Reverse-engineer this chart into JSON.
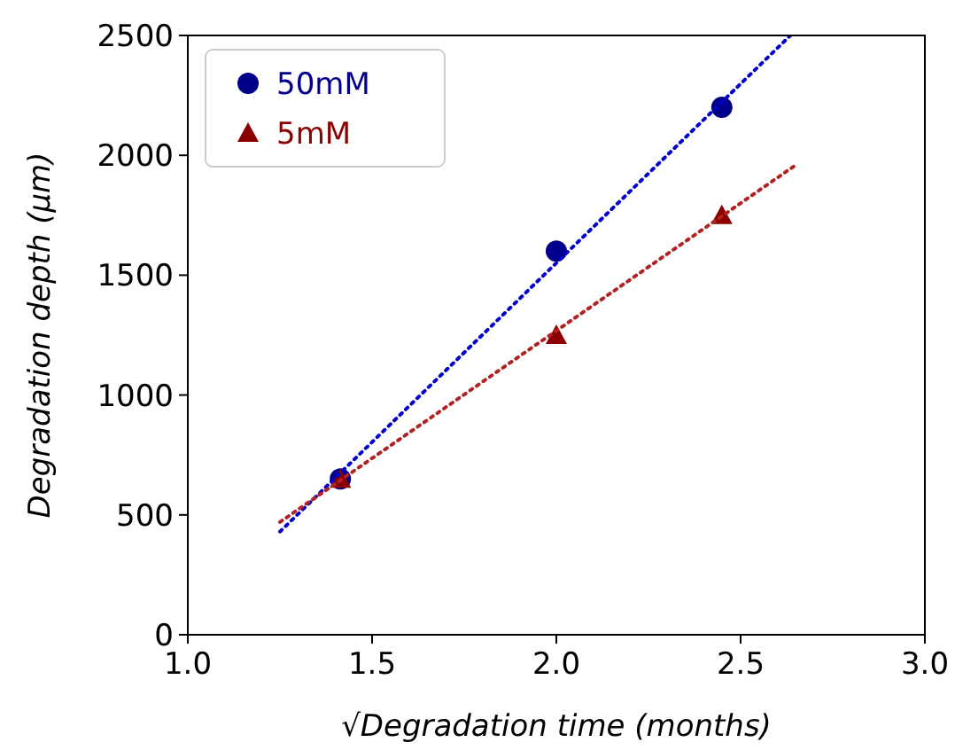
{
  "chart_data": {
    "type": "scatter",
    "xlabel": "√Degradation time (months)",
    "ylabel": "Degradation depth (μm)",
    "xlim": [
      1.0,
      3.0
    ],
    "xticks": [
      {
        "value": 1.0,
        "label": "1.0"
      },
      {
        "value": 1.5,
        "label": "1.5"
      },
      {
        "value": 2.0,
        "label": "2.0"
      },
      {
        "value": 2.5,
        "label": "2.5"
      },
      {
        "value": 3.0,
        "label": "3.0"
      }
    ],
    "ylim": [
      0,
      2500
    ],
    "yticks": [
      0,
      500,
      1000,
      1500,
      2000,
      2500
    ],
    "grid": false,
    "legend": "top left",
    "series": [
      {
        "name": "50mM",
        "color": "#00008b",
        "marker": "circle",
        "x": [
          1.414,
          2.0,
          2.449
        ],
        "values": [
          650,
          1600,
          2200
        ]
      },
      {
        "name": "5mM",
        "color": "#8b0000",
        "marker": "triangle",
        "x": [
          1.414,
          2.0,
          2.449
        ],
        "values": [
          650,
          1250,
          1750
        ]
      },
      {
        "type": "line",
        "color": "#0000cd",
        "marker": "none",
        "line_style": "dotted",
        "x": [
          1.25,
          2.635
        ],
        "values": [
          430,
          2500
        ]
      },
      {
        "type": "line",
        "color": "#b22222",
        "marker": "none",
        "line_style": "dotted",
        "x": [
          1.25,
          2.65
        ],
        "values": [
          470,
          1960
        ]
      }
    ]
  }
}
